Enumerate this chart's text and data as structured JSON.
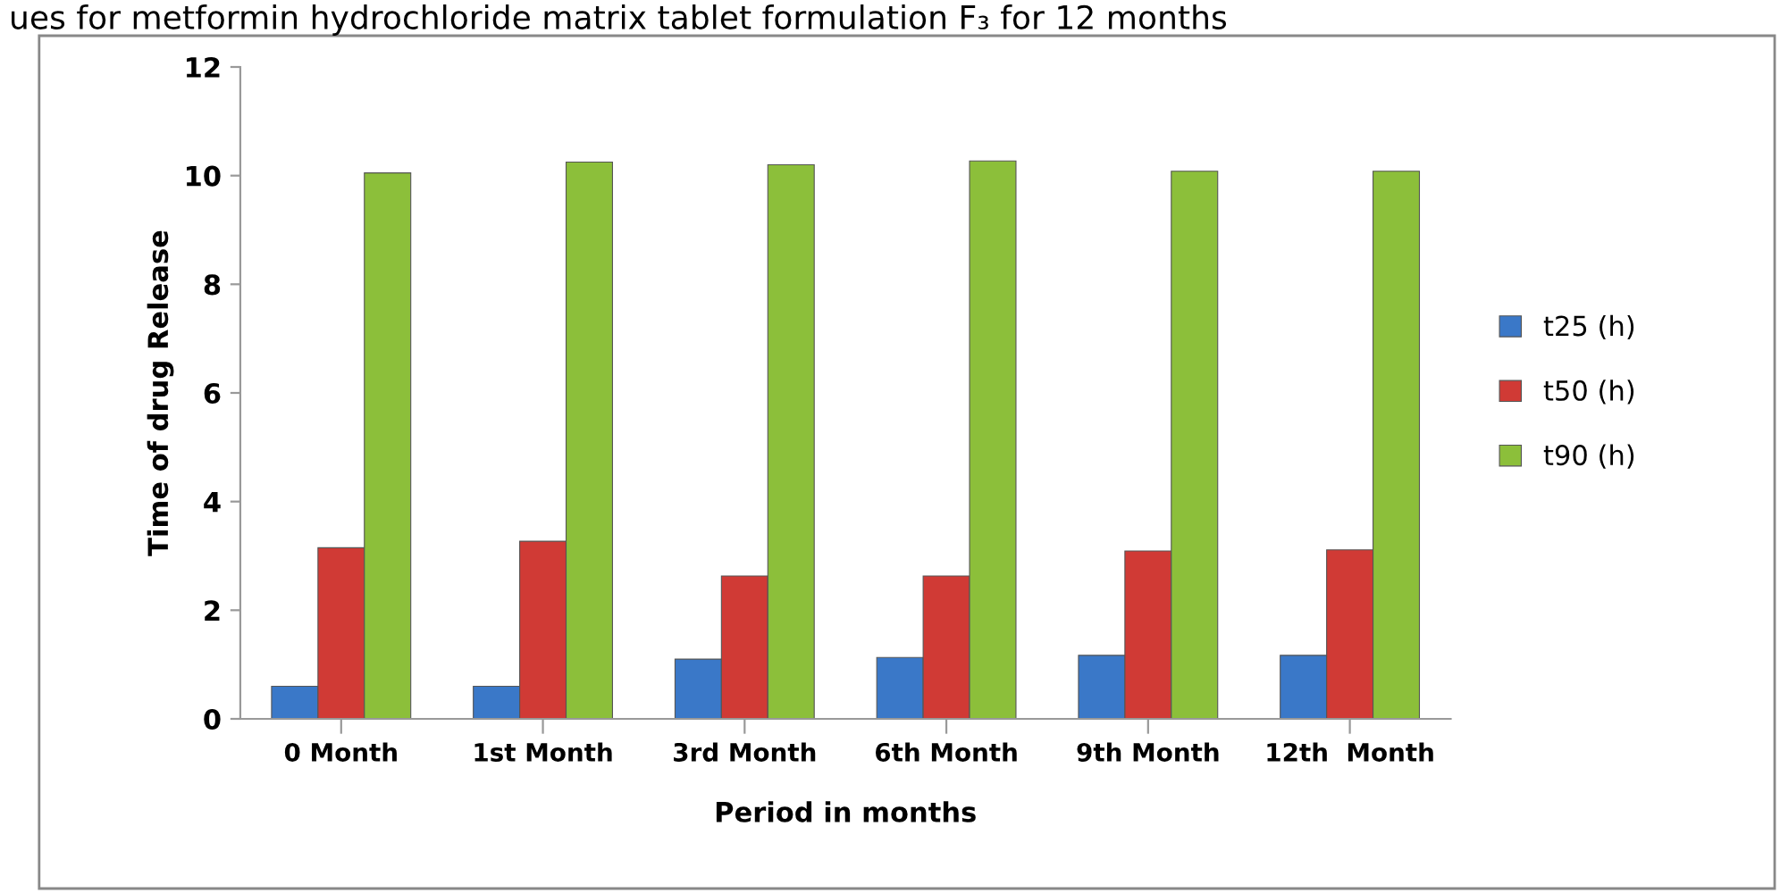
{
  "chart_data": {
    "type": "bar",
    "title": "ues for metformin hydrochloride matrix tablet formulation F₃ for 12 months",
    "xlabel": "Period in months",
    "ylabel": "Time of drug Release",
    "categories": [
      "0 Month",
      "1st Month",
      "3rd Month",
      "6th Month",
      "9th Month",
      "12th  Month"
    ],
    "series": [
      {
        "name": "t25 (h)",
        "color": "#3a78c8",
        "values": [
          0.6,
          0.6,
          1.1,
          1.13,
          1.17,
          1.17
        ]
      },
      {
        "name": "t50 (h)",
        "color": "#d03a35",
        "values": [
          3.15,
          3.27,
          2.63,
          2.63,
          3.09,
          3.11
        ]
      },
      {
        "name": "t90 (h)",
        "color": "#8cbf3a",
        "values": [
          10.05,
          10.25,
          10.2,
          10.27,
          10.08,
          10.08
        ]
      }
    ],
    "ylim": [
      0,
      12
    ],
    "yticks": [
      0,
      2,
      4,
      6,
      8,
      10,
      12
    ],
    "grid": false,
    "legend": "right"
  }
}
